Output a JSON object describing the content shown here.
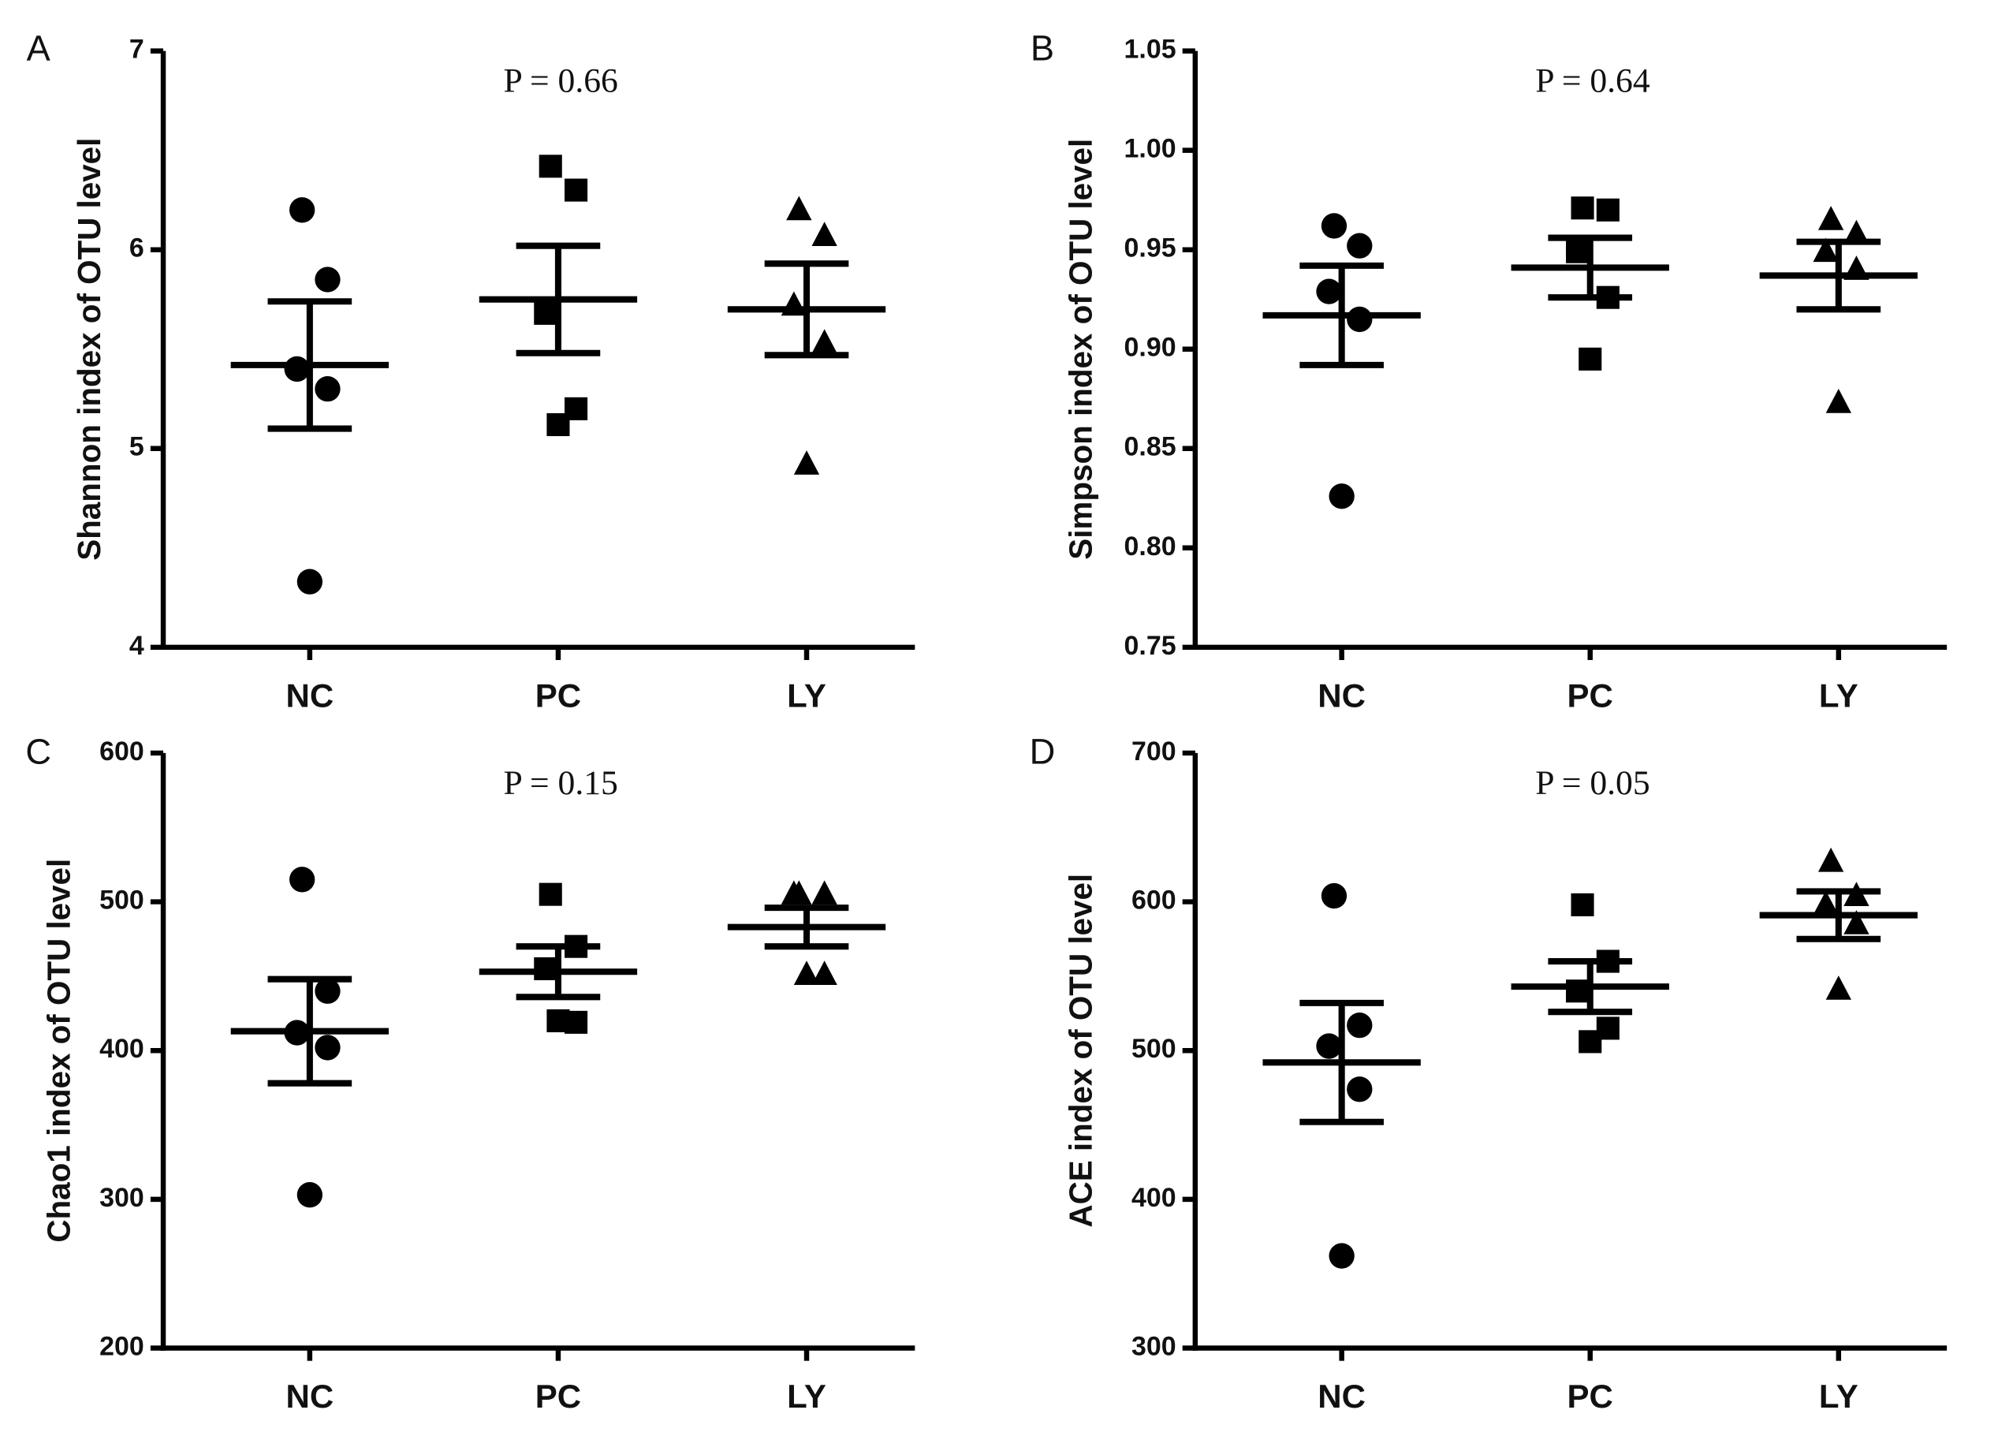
{
  "chart_data": [
    {
      "type": "dotplot",
      "panel_label": "A",
      "annotation": "P = 0.66",
      "y_label": "Shannon index of OTU level",
      "categories": [
        "NC",
        "PC",
        "LY"
      ],
      "markers": [
        "circle",
        "square",
        "triangle"
      ],
      "color": "#000000",
      "points": [
        [
          6.2,
          5.85,
          5.4,
          5.3,
          4.33
        ],
        [
          6.42,
          6.3,
          5.68,
          5.2,
          5.12
        ],
        [
          6.2,
          6.07,
          5.72,
          5.53,
          4.92
        ]
      ],
      "means": [
        5.42,
        5.75,
        5.7
      ],
      "sems": [
        0.32,
        0.27,
        0.23
      ],
      "ylim": [
        4,
        7
      ],
      "yticks": [
        4,
        5,
        6,
        7
      ]
    },
    {
      "type": "dotplot",
      "panel_label": "B",
      "annotation": "P = 0.64",
      "y_label": "Simpson index of OTU level",
      "categories": [
        "NC",
        "PC",
        "LY"
      ],
      "markers": [
        "circle",
        "square",
        "triangle"
      ],
      "color": "#000000",
      "points": [
        [
          0.962,
          0.952,
          0.929,
          0.915,
          0.826
        ],
        [
          0.971,
          0.97,
          0.949,
          0.926,
          0.895
        ],
        [
          0.965,
          0.958,
          0.949,
          0.94,
          0.873
        ]
      ],
      "means": [
        0.917,
        0.941,
        0.937
      ],
      "sems": [
        0.025,
        0.015,
        0.017
      ],
      "ylim": [
        0.75,
        1.05
      ],
      "yticks": [
        0.75,
        {
          "value": 0.8,
          "label": "0.80"
        },
        0.85,
        {
          "value": 0.9,
          "label": "0.90"
        },
        0.95,
        {
          "value": 1.0,
          "label": "1.00"
        },
        1.05
      ]
    },
    {
      "type": "dotplot",
      "panel_label": "C",
      "annotation": "P = 0.15",
      "y_label": "Chao1 index of OTU level",
      "categories": [
        "NC",
        "PC",
        "LY"
      ],
      "markers": [
        "circle",
        "square",
        "triangle"
      ],
      "color": "#000000",
      "points": [
        [
          515,
          440,
          412,
          402,
          303
        ],
        [
          505,
          470,
          455,
          419,
          420
        ],
        [
          505,
          505,
          505,
          451,
          451
        ]
      ],
      "means": [
        413,
        453,
        483
      ],
      "sems": [
        35,
        17,
        13
      ],
      "ylim": [
        200,
        600
      ],
      "yticks": [
        200,
        300,
        400,
        500,
        600
      ]
    },
    {
      "type": "dotplot",
      "panel_label": "D",
      "annotation": "P = 0.05",
      "y_label": "ACE index of OTU level",
      "categories": [
        "NC",
        "PC",
        "LY"
      ],
      "markers": [
        "circle",
        "square",
        "triangle"
      ],
      "color": "#000000",
      "points": [
        [
          604,
          517,
          503,
          474,
          362
        ],
        [
          598,
          560,
          540,
          515,
          506
        ],
        [
          627,
          604,
          598,
          585,
          541
        ]
      ],
      "means": [
        492,
        543,
        591
      ],
      "sems": [
        40,
        17,
        16
      ],
      "ylim": [
        300,
        700
      ],
      "yticks": [
        300,
        400,
        500,
        600,
        700
      ]
    }
  ]
}
